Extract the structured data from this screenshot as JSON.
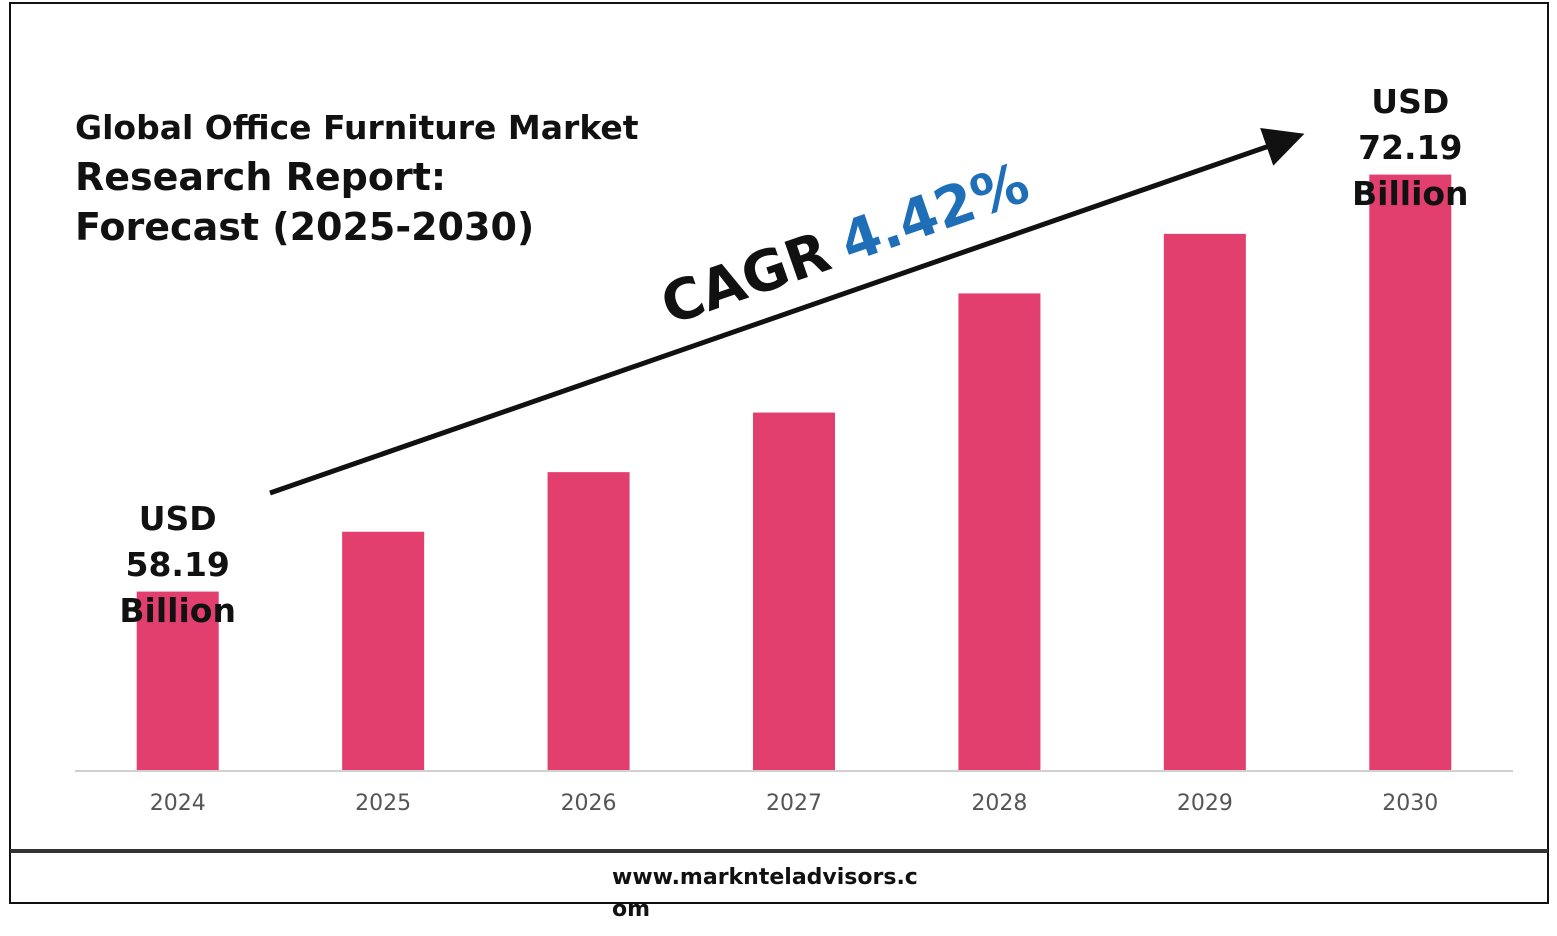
{
  "chart_data": {
    "type": "bar",
    "title": "Global Office Furniture Market",
    "subtitle": "Research Report: Forecast (2025-2030)",
    "categories": [
      "2024",
      "2025",
      "2026",
      "2027",
      "2028",
      "2029",
      "2030"
    ],
    "values": [
      58.19,
      60.2,
      62.2,
      64.2,
      68.2,
      70.2,
      72.19
    ],
    "value_labels": [
      "USD 58.19 Billion",
      null,
      null,
      null,
      null,
      null,
      "USD 72.19 Billion"
    ],
    "color": "#e23e6e",
    "ylim": [
      52.2,
      73.2
    ],
    "annotation": {
      "label": "CAGR",
      "value": "4.42%",
      "value_color": "#1f6fb8"
    },
    "source": "www.marknteladvisors.com"
  }
}
